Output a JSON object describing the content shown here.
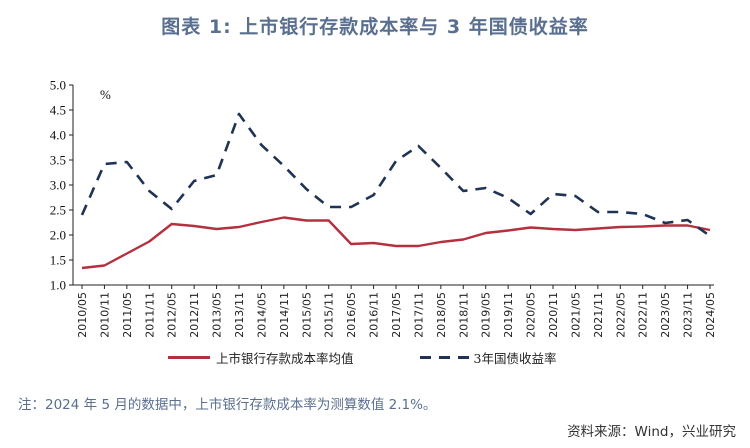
{
  "title": "图表 1:  上市银行存款成本率与 3 年国债收益率",
  "chart_data": {
    "type": "line",
    "title": "图表 1:  上市银行存款成本率与 3 年国债收益率",
    "xlabel": "",
    "ylabel": "%",
    "ylim": [
      1.0,
      5.0
    ],
    "yticks": [
      "1.0",
      "1.5",
      "2.0",
      "2.5",
      "3.0",
      "3.5",
      "4.0",
      "4.5",
      "5.0"
    ],
    "grid": false,
    "legend_position": "bottom",
    "categories": [
      "2010/05",
      "2010/11",
      "2011/05",
      "2011/11",
      "2012/05",
      "2012/11",
      "2013/05",
      "2013/11",
      "2014/05",
      "2014/11",
      "2015/05",
      "2015/11",
      "2016/05",
      "2016/11",
      "2017/05",
      "2017/11",
      "2018/05",
      "2018/11",
      "2019/05",
      "2019/11",
      "2020/05",
      "2020/11",
      "2021/05",
      "2021/11",
      "2022/05",
      "2022/11",
      "2023/05",
      "2023/11",
      "2024/05"
    ],
    "series": [
      {
        "name": "上市银行存款成本率均值",
        "style": "solid",
        "color": "#b5303f",
        "values": [
          1.34,
          1.39,
          1.63,
          1.87,
          2.22,
          2.18,
          2.12,
          2.16,
          2.26,
          2.35,
          2.29,
          2.29,
          1.82,
          1.84,
          1.78,
          1.78,
          1.86,
          1.91,
          2.04,
          2.09,
          2.15,
          2.12,
          2.1,
          2.13,
          2.16,
          2.17,
          2.19,
          2.19,
          2.1
        ]
      },
      {
        "name": "3年国债收益率",
        "style": "dashed",
        "color": "#1f3354",
        "values": [
          2.4,
          3.42,
          3.46,
          2.88,
          2.52,
          3.08,
          3.2,
          4.42,
          3.8,
          3.38,
          2.92,
          2.56,
          2.56,
          2.8,
          3.48,
          3.78,
          3.34,
          2.88,
          2.94,
          2.74,
          2.42,
          2.82,
          2.78,
          2.46,
          2.46,
          2.42,
          2.24,
          2.3,
          1.98
        ]
      }
    ]
  },
  "legend": {
    "items": [
      {
        "label": "上市银行存款成本率均值",
        "color": "#b5303f",
        "style": "solid"
      },
      {
        "label": "3年国债收益率",
        "color": "#1f3354",
        "style": "dashed"
      }
    ]
  },
  "note": "注：2024 年 5 月的数据中，上市银行存款成本率为测算数值 2.1%。",
  "source": "资料来源：Wind，兴业研究"
}
